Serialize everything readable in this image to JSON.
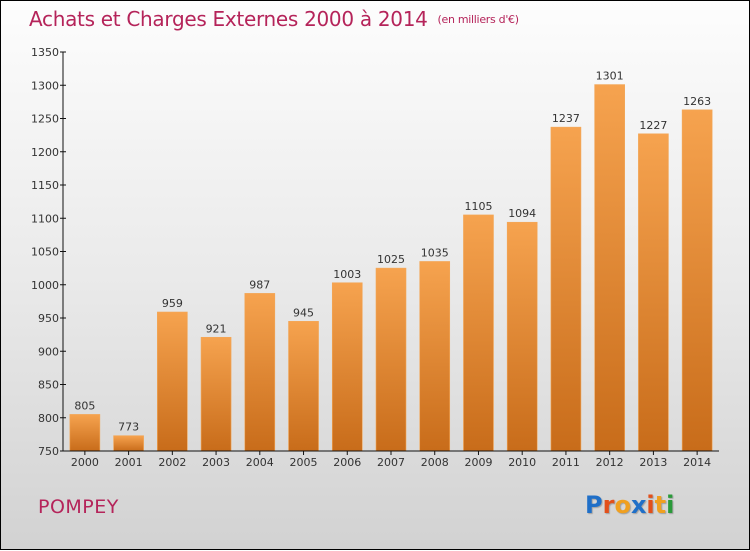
{
  "header": {
    "title": "Achats et Charges Externes 2000 à 2014",
    "unit": "(en milliers d'€)"
  },
  "footer": {
    "city": "POMPEY",
    "logo": {
      "letters": [
        "P",
        "r",
        "o",
        "x",
        "i",
        "t",
        "i"
      ],
      "colors": [
        "#1f6fc8",
        "#e2501b",
        "#f0a020",
        "#1f6fc8",
        "#e2501b",
        "#f0a020",
        "#2a9a3a"
      ]
    }
  },
  "colors": {
    "bar_top": "#f6a34f",
    "bar_bottom": "#c86c1a",
    "title": "#b5245a"
  },
  "chart_data": {
    "type": "bar",
    "title": "Achats et Charges Externes 2000 à 2014",
    "subtitle": "(en milliers d'€)",
    "xlabel": "",
    "ylabel": "",
    "categories": [
      "2000",
      "2001",
      "2002",
      "2003",
      "2004",
      "2005",
      "2006",
      "2007",
      "2008",
      "2009",
      "2010",
      "2011",
      "2012",
      "2013",
      "2014"
    ],
    "values": [
      805,
      773,
      959,
      921,
      987,
      945,
      1003,
      1025,
      1035,
      1105,
      1094,
      1237,
      1301,
      1227,
      1263
    ],
    "ylim": [
      750,
      1350
    ],
    "yticks": [
      750,
      800,
      850,
      900,
      950,
      1000,
      1050,
      1100,
      1150,
      1200,
      1250,
      1300,
      1350
    ],
    "grid": false,
    "legend": "none"
  }
}
